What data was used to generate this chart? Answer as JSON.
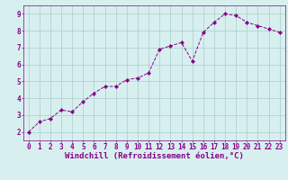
{
  "x": [
    0,
    1,
    2,
    3,
    4,
    5,
    6,
    7,
    8,
    9,
    10,
    11,
    12,
    13,
    14,
    15,
    16,
    17,
    18,
    19,
    20,
    21,
    22,
    23
  ],
  "y": [
    2.0,
    2.6,
    2.8,
    3.3,
    3.2,
    3.8,
    4.3,
    4.7,
    4.7,
    5.1,
    5.2,
    5.5,
    6.9,
    7.1,
    7.3,
    6.2,
    7.9,
    8.5,
    9.0,
    8.9,
    8.5,
    8.3,
    8.1,
    7.9
  ],
  "line_color": "#880088",
  "marker": "D",
  "marker_size": 2.2,
  "bg_color": "#d8efef",
  "grid_color": "#aacccc",
  "xlabel": "Windchill (Refroidissement éolien,°C)",
  "xlabel_color": "#880088",
  "tick_color": "#880088",
  "xlabel_fontsize": 6.5,
  "tick_fontsize": 5.5,
  "ylim": [
    1.5,
    9.5
  ],
  "xlim": [
    -0.5,
    23.5
  ],
  "yticks": [
    2,
    3,
    4,
    5,
    6,
    7,
    8,
    9
  ],
  "xticks": [
    0,
    1,
    2,
    3,
    4,
    5,
    6,
    7,
    8,
    9,
    10,
    11,
    12,
    13,
    14,
    15,
    16,
    17,
    18,
    19,
    20,
    21,
    22,
    23
  ]
}
